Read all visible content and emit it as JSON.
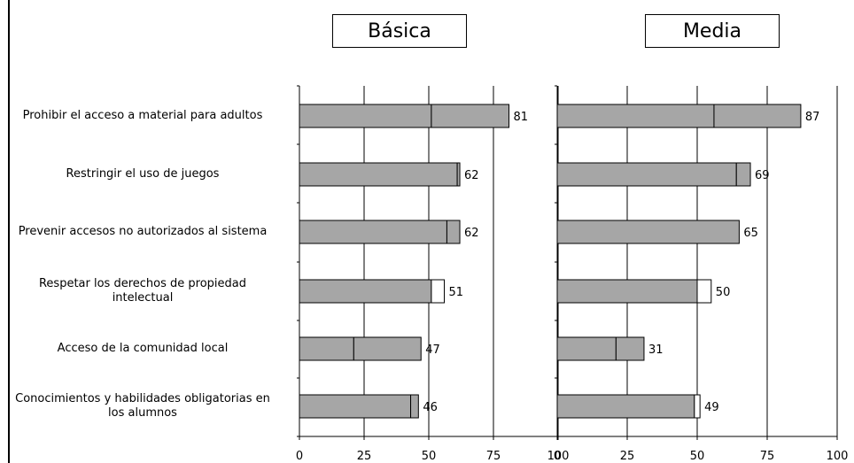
{
  "chart_data": [
    {
      "type": "bar",
      "title": "Básica",
      "categories": [
        "Prohibir el acceso a material para adultos",
        "Restringir el uso de juegos",
        "Prevenir accesos no autorizados al sistema",
        "Respetar los derechos de propiedad intelectual",
        "Acceso de la comunidad local",
        "Conocimientos y habilidades obligatorias en los alumnos"
      ],
      "series": [
        {
          "values": [
            51,
            61,
            57,
            51,
            21,
            43
          ],
          "fill": "#a6a6a6"
        },
        {
          "values": [
            30,
            1,
            5,
            5,
            26,
            3
          ],
          "fill": "mixed"
        }
      ],
      "totals": [
        81,
        62,
        62,
        51,
        47,
        46
      ],
      "segment_fills": [
        [
          "#a6a6a6",
          "#a6a6a6"
        ],
        [
          "#a6a6a6",
          "#a6a6a6"
        ],
        [
          "#a6a6a6",
          "#a6a6a6"
        ],
        [
          "#a6a6a6",
          "#ffffff"
        ],
        [
          "#a6a6a6",
          "#a6a6a6"
        ],
        [
          "#a6a6a6",
          "#a6a6a6"
        ]
      ],
      "xlim": [
        0,
        100
      ],
      "xticks": [
        "0",
        "25",
        "50",
        "75",
        "100"
      ],
      "grid": true
    },
    {
      "type": "bar",
      "title": "Media",
      "categories": [
        "Prohibir el acceso a material para adultos",
        "Restringir el uso de juegos",
        "Prevenir accesos no autorizados al sistema",
        "Respetar los derechos de propiedad intelectual",
        "Acceso de la comunidad local",
        "Conocimientos y habilidades obligatorias en los alumnos"
      ],
      "series": [
        {
          "values": [
            56,
            64,
            65,
            50,
            21,
            49
          ],
          "fill": "#a6a6a6"
        },
        {
          "values": [
            31,
            5,
            0,
            5,
            10,
            2
          ],
          "fill": "mixed"
        }
      ],
      "totals": [
        87,
        69,
        65,
        50,
        31,
        49
      ],
      "segment_fills": [
        [
          "#a6a6a6",
          "#a6a6a6"
        ],
        [
          "#a6a6a6",
          "#a6a6a6"
        ],
        [
          "#a6a6a6",
          "#a6a6a6"
        ],
        [
          "#a6a6a6",
          "#ffffff"
        ],
        [
          "#a6a6a6",
          "#a6a6a6"
        ],
        [
          "#a6a6a6",
          "#ffffff"
        ]
      ],
      "xlim": [
        0,
        100
      ],
      "xticks": [
        "0",
        "25",
        "50",
        "75",
        "100"
      ],
      "grid": true
    }
  ],
  "category_labels": [
    [
      "Prohibir el acceso a material para adultos"
    ],
    [
      "Restringir el uso de juegos"
    ],
    [
      "Prevenir accesos no autorizados al sistema"
    ],
    [
      "Respetar los derechos de propiedad",
      "intelectual"
    ],
    [
      "Acceso de la comunidad local"
    ],
    [
      "Conocimientos y habilidades obligatorias en",
      "los alumnos"
    ]
  ]
}
